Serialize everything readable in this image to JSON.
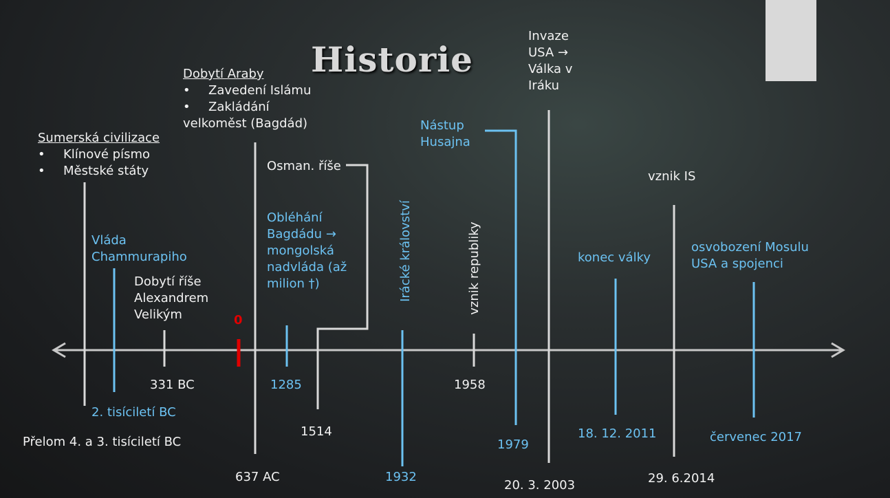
{
  "title": "Historie",
  "events": [
    {
      "heading": "Sumerská civilizace",
      "items": [
        "Klínové písmo",
        "Městské státy"
      ],
      "date": "Přelom 4. a 3. tisíciletí BC"
    },
    {
      "heading": "Vláda Chammurapiho",
      "date": "2. tisíciletí BC"
    },
    {
      "heading": "Dobytí říše Alexandrem Velikým",
      "date": "331 BC"
    },
    {
      "heading": "0"
    },
    {
      "heading": "Dobytí Araby",
      "items": [
        "Zavedení Islámu",
        "Zakládání velkoměst (Bagdád)"
      ],
      "date": "637 AC"
    },
    {
      "heading": "Obléhání Bagdádu → mongolská nadvláda (až milion †)",
      "date": "1285"
    },
    {
      "heading": "Osman. říše",
      "date": "1514"
    },
    {
      "heading": "Irácké království",
      "date": "1932"
    },
    {
      "heading": "vznik republiky",
      "date": "1958"
    },
    {
      "heading": "Nástup Husajna",
      "date": "1979"
    },
    {
      "heading": "Invaze USA → Válka v Iráku",
      "date": "20. 3. 2003"
    },
    {
      "heading": "konec války",
      "date": "18. 12. 2011"
    },
    {
      "heading": "vznik IS",
      "date": "29. 6.2014"
    },
    {
      "heading": "osvobození Mosulu USA a spojenci",
      "date": "červenec 2017"
    }
  ]
}
